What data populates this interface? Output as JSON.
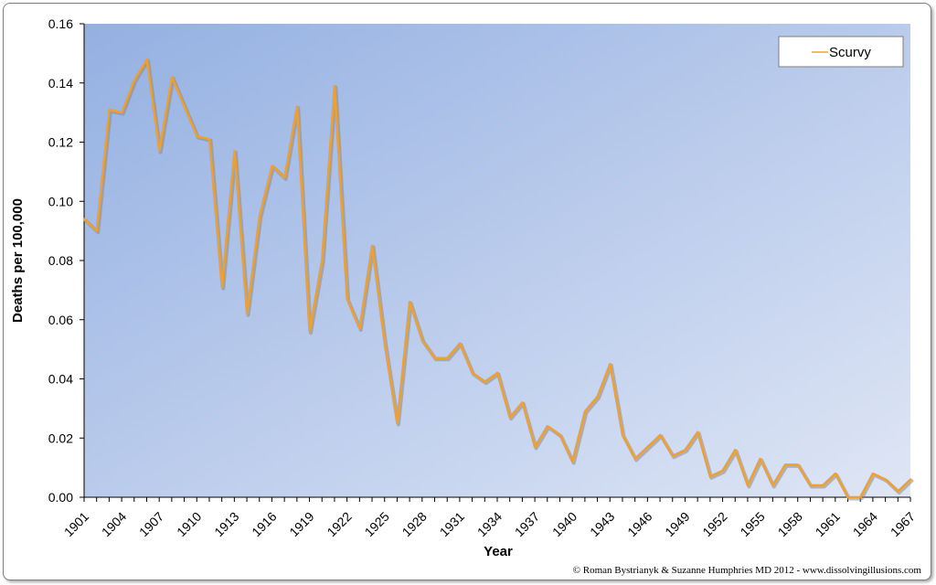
{
  "chart_data": {
    "type": "line",
    "title": "",
    "xlabel": "Year",
    "ylabel": "Deaths per 100,000",
    "ylim": [
      0,
      0.16
    ],
    "xlim": [
      1901,
      1967
    ],
    "y_ticks": [
      "0.00",
      "0.02",
      "0.04",
      "0.06",
      "0.08",
      "0.10",
      "0.12",
      "0.14",
      "0.16"
    ],
    "x_ticks": [
      "1901",
      "1904",
      "1907",
      "1910",
      "1913",
      "1916",
      "1919",
      "1922",
      "1925",
      "1928",
      "1931",
      "1934",
      "1937",
      "1940",
      "1943",
      "1946",
      "1949",
      "1952",
      "1955",
      "1958",
      "1961",
      "1964",
      "1967"
    ],
    "grid": false,
    "legend_position": "top-right",
    "series": [
      {
        "name": "Scurvy",
        "color": "#F0A030",
        "x": [
          1901,
          1902,
          1903,
          1904,
          1905,
          1906,
          1907,
          1908,
          1909,
          1910,
          1911,
          1912,
          1913,
          1914,
          1915,
          1916,
          1917,
          1918,
          1919,
          1920,
          1921,
          1922,
          1923,
          1924,
          1925,
          1926,
          1927,
          1928,
          1929,
          1930,
          1931,
          1932,
          1933,
          1934,
          1935,
          1936,
          1937,
          1938,
          1939,
          1940,
          1941,
          1942,
          1943,
          1944,
          1945,
          1946,
          1947,
          1948,
          1949,
          1950,
          1951,
          1952,
          1953,
          1954,
          1955,
          1956,
          1957,
          1958,
          1959,
          1960,
          1961,
          1962,
          1963,
          1964,
          1965,
          1966,
          1967
        ],
        "values": [
          0.094,
          0.09,
          0.131,
          0.13,
          0.141,
          0.148,
          0.117,
          0.142,
          0.132,
          0.122,
          0.121,
          0.071,
          0.117,
          0.062,
          0.095,
          0.112,
          0.108,
          0.132,
          0.056,
          0.08,
          0.139,
          0.067,
          0.057,
          0.085,
          0.052,
          0.025,
          0.066,
          0.053,
          0.047,
          0.047,
          0.052,
          0.042,
          0.039,
          0.042,
          0.027,
          0.032,
          0.017,
          0.024,
          0.021,
          0.012,
          0.029,
          0.034,
          0.045,
          0.021,
          0.013,
          0.017,
          0.021,
          0.014,
          0.016,
          0.022,
          0.007,
          0.009,
          0.016,
          0.004,
          0.013,
          0.004,
          0.011,
          0.011,
          0.004,
          0.004,
          0.008,
          0.0,
          0.0,
          0.008,
          0.006,
          0.002,
          0.006
        ]
      }
    ]
  },
  "credit": "© Roman Bystrianyk & Suzanne Humphries MD 2012 - www.dissolvingillusions.com"
}
